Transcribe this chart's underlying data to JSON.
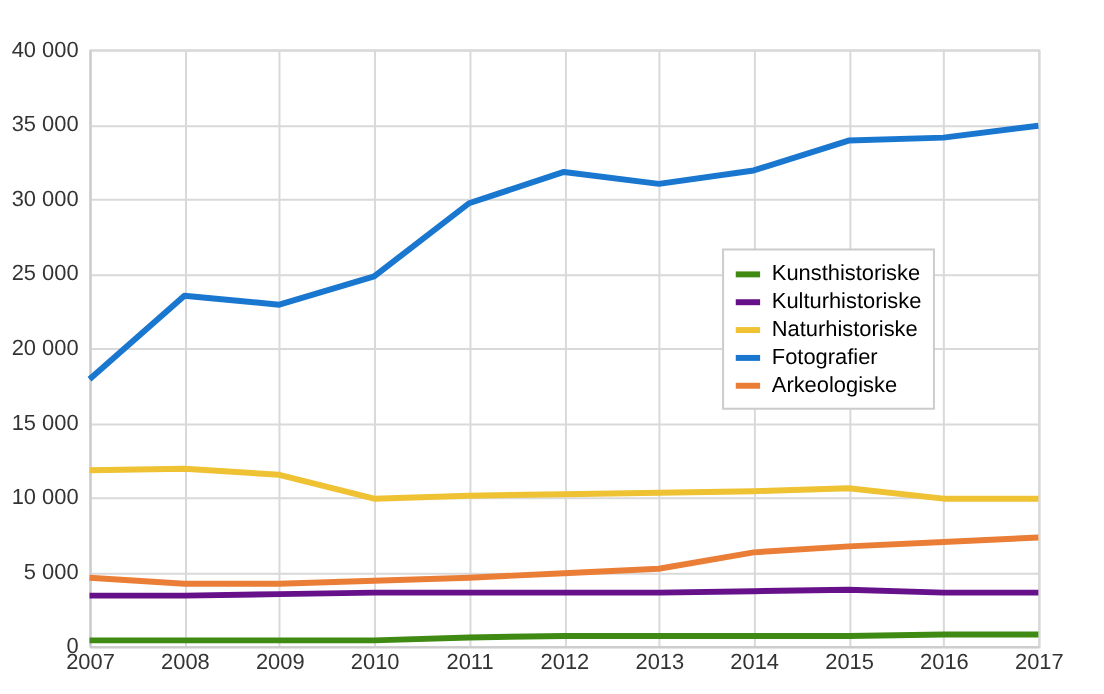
{
  "chart_data": {
    "type": "line",
    "x": [
      2007,
      2008,
      2009,
      2010,
      2011,
      2012,
      2013,
      2014,
      2015,
      2016,
      2017
    ],
    "xlim": [
      2007,
      2017
    ],
    "xticks": [
      2007,
      2008,
      2009,
      2010,
      2011,
      2012,
      2013,
      2014,
      2015,
      2016,
      2017
    ],
    "ylim": [
      0,
      40000
    ],
    "yticks": [
      {
        "value": 0,
        "label": "0"
      },
      {
        "value": 5000,
        "label": "5 000"
      },
      {
        "value": 10000,
        "label": "10 000"
      },
      {
        "value": 15000,
        "label": "15 000"
      },
      {
        "value": 20000,
        "label": "20 000"
      },
      {
        "value": 25000,
        "label": "25 000"
      },
      {
        "value": 30000,
        "label": "30 000"
      },
      {
        "value": 35000,
        "label": "35 000"
      },
      {
        "value": 40000,
        "label": "40 000"
      }
    ],
    "grid": true,
    "legend": "right",
    "marker": "none",
    "line_style": "solid",
    "series": [
      {
        "name": "Kunsthistoriske",
        "color": "#3f8a12",
        "values": [
          400,
          400,
          400,
          400,
          600,
          700,
          700,
          700,
          700,
          800,
          800
        ]
      },
      {
        "name": "Kulturhistoriske",
        "color": "#66108a",
        "values": [
          3400,
          3400,
          3500,
          3600,
          3600,
          3600,
          3600,
          3700,
          3800,
          3600,
          3600
        ]
      },
      {
        "name": "Naturhistoriske",
        "color": "#eec232",
        "values": [
          11800,
          11900,
          11500,
          9900,
          10100,
          10200,
          10300,
          10400,
          10600,
          9900,
          9900
        ]
      },
      {
        "name": "Fotografier",
        "color": "#1a77cf",
        "values": [
          17900,
          23500,
          22900,
          24800,
          29700,
          31800,
          31000,
          31900,
          33900,
          34100,
          34900
        ]
      },
      {
        "name": "Arkeologiske",
        "color": "#ea7e36",
        "values": [
          4600,
          4200,
          4200,
          4400,
          4600,
          4900,
          5200,
          6300,
          6700,
          7000,
          7300
        ]
      }
    ]
  }
}
